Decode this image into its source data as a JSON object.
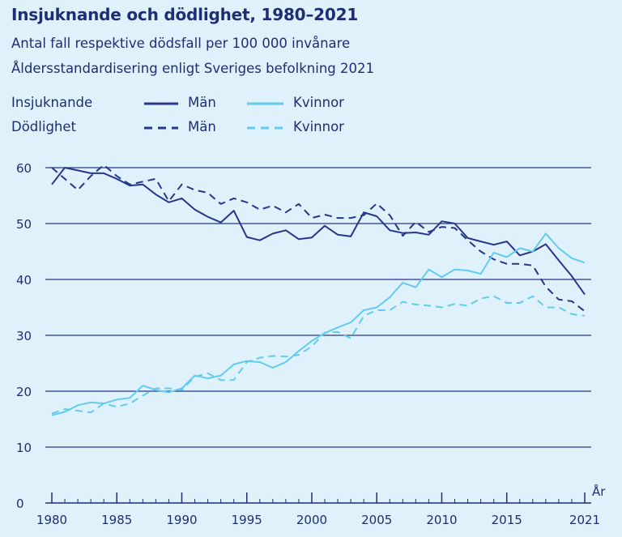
{
  "chart_data": {
    "type": "line",
    "title": "Insjuknande och dödlighet, 1980–2021",
    "subtitle_lines": [
      "Antal fall respektive dödsfall per 100 000 invånare",
      "Åldersstandardisering enligt Sveriges befolkning 2021"
    ],
    "legend": {
      "group_incidence": "Insjuknande",
      "group_mortality": "Dödlighet",
      "men": "Män",
      "women": "Kvinnor"
    },
    "xlabel": "År",
    "ylabel": "",
    "xlim": [
      1980,
      2021
    ],
    "ylim": [
      0,
      60
    ],
    "x_ticks": [
      1980,
      1985,
      1990,
      1995,
      2000,
      2005,
      2010,
      2015,
      2021
    ],
    "y_ticks": [
      0,
      10,
      20,
      30,
      40,
      50,
      60
    ],
    "colors": {
      "men": "#27368a",
      "women": "#63cbee",
      "axis": "#1f2d74",
      "grid": "#27368a"
    },
    "x": [
      1980,
      1981,
      1982,
      1983,
      1984,
      1985,
      1986,
      1987,
      1988,
      1989,
      1990,
      1991,
      1992,
      1993,
      1994,
      1995,
      1996,
      1997,
      1998,
      1999,
      2000,
      2001,
      2002,
      2003,
      2004,
      2005,
      2006,
      2007,
      2008,
      2009,
      2010,
      2011,
      2012,
      2013,
      2014,
      2015,
      2016,
      2017,
      2018,
      2019,
      2020,
      2021
    ],
    "series": [
      {
        "name": "Insjuknande Män",
        "group": "Insjuknande",
        "sex": "Män",
        "style": "solid",
        "color": "#27368a",
        "values": [
          57,
          60,
          59.5,
          59,
          59,
          58,
          56.8,
          57,
          55.2,
          53.8,
          54.5,
          52.5,
          51.2,
          50.2,
          52.3,
          47.6,
          47,
          48.2,
          48.8,
          47.2,
          47.5,
          49.6,
          48,
          47.7,
          52,
          51.3,
          48.8,
          48.3,
          48.4,
          48,
          50.4,
          50,
          47.4,
          46.8,
          46.2,
          46.8,
          44.3,
          45,
          46.3,
          43.4,
          40.6,
          37.3
        ]
      },
      {
        "name": "Dödlighet Män",
        "group": "Dödlighet",
        "sex": "Män",
        "style": "dashed",
        "color": "#27368a",
        "values": [
          60,
          58,
          56,
          58.5,
          60.5,
          58.5,
          57,
          57.5,
          58,
          54,
          57,
          56,
          55.5,
          53.5,
          54.5,
          53.8,
          52.5,
          53.2,
          52,
          53.5,
          51,
          51.6,
          51,
          51,
          51.5,
          53.6,
          51.5,
          47.8,
          50.3,
          48.5,
          49.4,
          49.2,
          47,
          45,
          43.6,
          42.8,
          42.8,
          42.5,
          38.7,
          36.4,
          36.1,
          34.3
        ]
      },
      {
        "name": "Insjuknande Kvinnor",
        "group": "Insjuknande",
        "sex": "Kvinnor",
        "style": "solid",
        "color": "#63cbee",
        "values": [
          15.7,
          16.3,
          17.5,
          18,
          17.8,
          18.5,
          18.8,
          21,
          20.2,
          19.8,
          20.5,
          22.8,
          22.3,
          22.8,
          24.8,
          25.4,
          25.2,
          24.2,
          25.2,
          27.2,
          29,
          30.4,
          31.4,
          32.3,
          34.5,
          35,
          36.8,
          39.4,
          38.6,
          41.8,
          40.4,
          41.8,
          41.6,
          41,
          44.8,
          44,
          45.6,
          45,
          48.2,
          45.6,
          43.8,
          43
        ]
      },
      {
        "name": "Dödlighet Kvinnor",
        "group": "Dödlighet",
        "sex": "Kvinnor",
        "style": "dashed",
        "color": "#63cbee",
        "values": [
          16,
          16.8,
          16.5,
          16.2,
          17.8,
          17.2,
          17.8,
          19.2,
          20.5,
          20.5,
          20.2,
          22.6,
          23.2,
          22,
          22,
          25.2,
          26,
          26.3,
          26.2,
          26.5,
          28,
          30.5,
          30.6,
          29.5,
          33.5,
          34.5,
          34.5,
          36,
          35.5,
          35.3,
          35,
          35.6,
          35.3,
          36.6,
          37,
          35.8,
          35.8,
          37,
          35,
          35,
          33.8,
          33.5
        ]
      }
    ]
  }
}
